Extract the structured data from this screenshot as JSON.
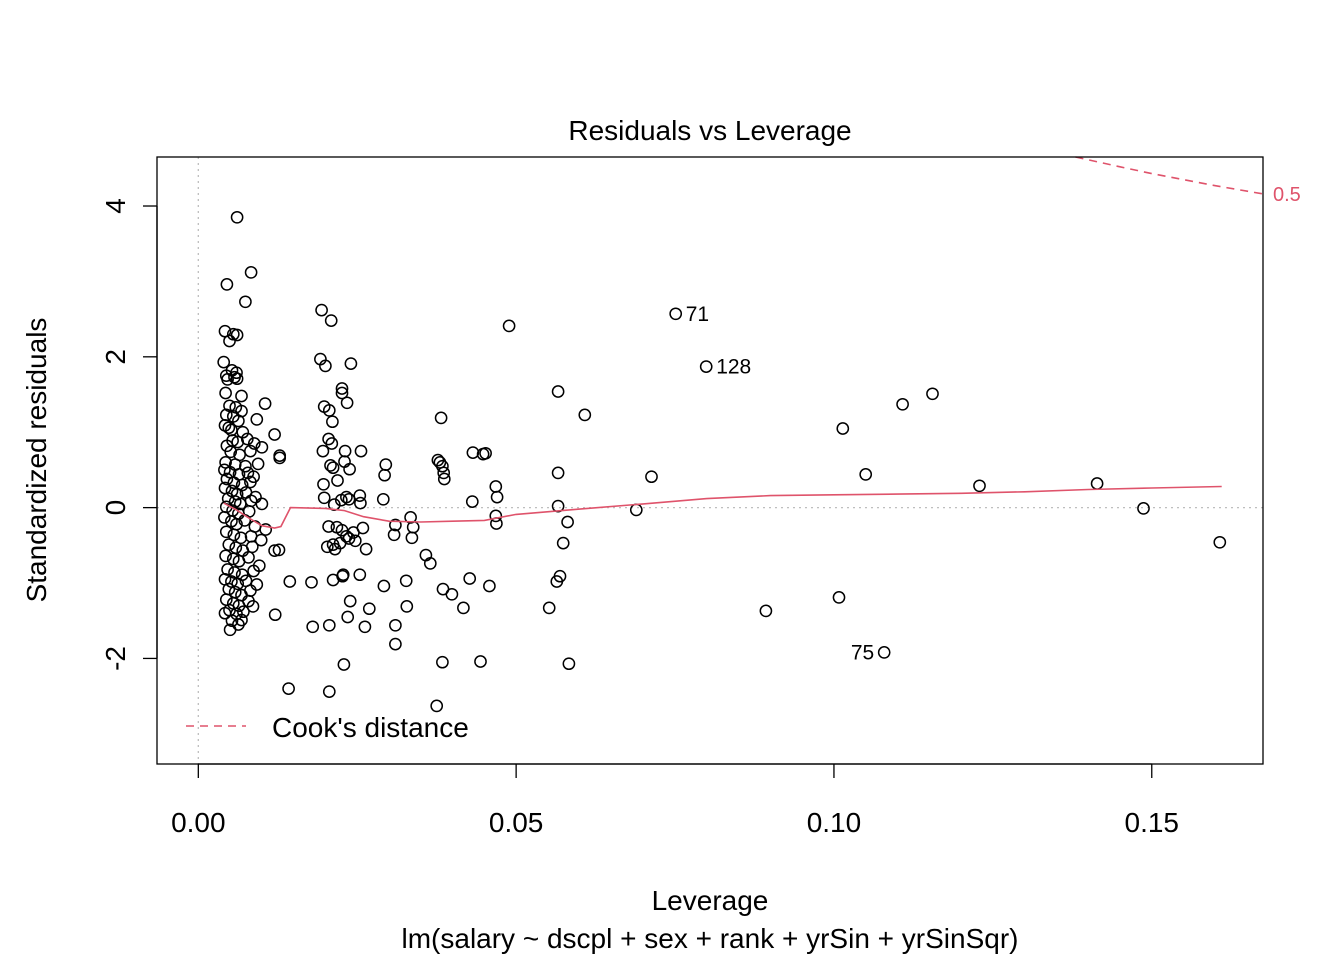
{
  "chart_data": {
    "type": "scatter",
    "title": "Residuals vs Leverage",
    "xlabel": "Leverage",
    "sublabel": "lm(salary ~ dscpl + sex + rank + yrSin + yrSinSqr)",
    "ylabel": "Standardized residuals",
    "xlim": [
      -0.0065,
      0.1675
    ],
    "ylim": [
      -3.4,
      4.65
    ],
    "x_ticks": [
      0.0,
      0.05,
      0.1,
      0.15
    ],
    "x_tick_labels": [
      "0.00",
      "0.05",
      "0.10",
      "0.15"
    ],
    "y_ticks": [
      -2,
      0,
      2,
      4
    ],
    "y_tick_labels": [
      "-2",
      "0",
      "2",
      "4"
    ],
    "reference_lines": {
      "x": 0,
      "y": 0,
      "style": "dotted",
      "color": "#BEBEBE"
    },
    "point_color": "#000000",
    "smooth_color": "#DF536B",
    "cook_color": "#DF536B",
    "points": [
      [
        0.0061,
        3.85
      ],
      [
        0.0083,
        3.12
      ],
      [
        0.0045,
        2.96
      ],
      [
        0.0074,
        2.73
      ],
      [
        0.0042,
        2.34
      ],
      [
        0.0055,
        2.3
      ],
      [
        0.0061,
        2.29
      ],
      [
        0.0049,
        2.21
      ],
      [
        0.004,
        1.93
      ],
      [
        0.0053,
        1.82
      ],
      [
        0.006,
        1.79
      ],
      [
        0.0044,
        1.75
      ],
      [
        0.0046,
        1.7
      ],
      [
        0.0057,
        1.73
      ],
      [
        0.0061,
        1.71
      ],
      [
        0.0043,
        1.52
      ],
      [
        0.0068,
        1.48
      ],
      [
        0.0105,
        1.38
      ],
      [
        0.0049,
        1.35
      ],
      [
        0.0059,
        1.33
      ],
      [
        0.0068,
        1.28
      ],
      [
        0.0044,
        1.23
      ],
      [
        0.0055,
        1.21
      ],
      [
        0.0063,
        1.15
      ],
      [
        0.0092,
        1.17
      ],
      [
        0.0042,
        1.09
      ],
      [
        0.0048,
        1.06
      ],
      [
        0.0052,
        1.03
      ],
      [
        0.007,
        1.0
      ],
      [
        0.012,
        0.97
      ],
      [
        0.0054,
        0.89
      ],
      [
        0.0062,
        0.87
      ],
      [
        0.0077,
        0.91
      ],
      [
        0.0088,
        0.85
      ],
      [
        0.01,
        0.8
      ],
      [
        0.0045,
        0.82
      ],
      [
        0.0051,
        0.74
      ],
      [
        0.0065,
        0.7
      ],
      [
        0.0082,
        0.75
      ],
      [
        0.0128,
        0.69
      ],
      [
        0.0128,
        0.66
      ],
      [
        0.0043,
        0.6
      ],
      [
        0.0058,
        0.57
      ],
      [
        0.0074,
        0.55
      ],
      [
        0.0094,
        0.58
      ],
      [
        0.0041,
        0.5
      ],
      [
        0.005,
        0.47
      ],
      [
        0.0064,
        0.44
      ],
      [
        0.0078,
        0.46
      ],
      [
        0.0087,
        0.41
      ],
      [
        0.0045,
        0.38
      ],
      [
        0.0056,
        0.33
      ],
      [
        0.0069,
        0.3
      ],
      [
        0.0082,
        0.34
      ],
      [
        0.0042,
        0.26
      ],
      [
        0.0053,
        0.22
      ],
      [
        0.0061,
        0.18
      ],
      [
        0.0075,
        0.2
      ],
      [
        0.009,
        0.14
      ],
      [
        0.0047,
        0.12
      ],
      [
        0.0058,
        0.08
      ],
      [
        0.0066,
        0.05
      ],
      [
        0.0083,
        0.09
      ],
      [
        0.01,
        0.05
      ],
      [
        0.0044,
        0.01
      ],
      [
        0.0054,
        -0.04
      ],
      [
        0.0063,
        -0.08
      ],
      [
        0.008,
        -0.05
      ],
      [
        0.0041,
        -0.13
      ],
      [
        0.0052,
        -0.18
      ],
      [
        0.006,
        -0.22
      ],
      [
        0.0073,
        -0.17
      ],
      [
        0.0089,
        -0.25
      ],
      [
        0.0106,
        -0.29
      ],
      [
        0.0044,
        -0.32
      ],
      [
        0.0056,
        -0.36
      ],
      [
        0.0067,
        -0.4
      ],
      [
        0.0083,
        -0.38
      ],
      [
        0.0099,
        -0.43
      ],
      [
        0.0048,
        -0.49
      ],
      [
        0.0059,
        -0.53
      ],
      [
        0.007,
        -0.57
      ],
      [
        0.0085,
        -0.52
      ],
      [
        0.0127,
        -0.56
      ],
      [
        0.012,
        -0.57
      ],
      [
        0.0043,
        -0.64
      ],
      [
        0.0055,
        -0.68
      ],
      [
        0.0064,
        -0.71
      ],
      [
        0.0079,
        -0.66
      ],
      [
        0.0096,
        -0.77
      ],
      [
        0.0046,
        -0.82
      ],
      [
        0.0057,
        -0.86
      ],
      [
        0.0069,
        -0.89
      ],
      [
        0.0087,
        -0.84
      ],
      [
        0.0042,
        -0.95
      ],
      [
        0.0052,
        -0.98
      ],
      [
        0.0062,
        -1.01
      ],
      [
        0.0075,
        -0.97
      ],
      [
        0.0092,
        -1.02
      ],
      [
        0.0048,
        -1.08
      ],
      [
        0.0058,
        -1.12
      ],
      [
        0.0068,
        -1.16
      ],
      [
        0.0082,
        -1.1
      ],
      [
        0.0044,
        -1.22
      ],
      [
        0.0055,
        -1.27
      ],
      [
        0.0064,
        -1.3
      ],
      [
        0.0079,
        -1.24
      ],
      [
        0.0049,
        -1.36
      ],
      [
        0.006,
        -1.41
      ],
      [
        0.0071,
        -1.38
      ],
      [
        0.0086,
        -1.31
      ],
      [
        0.0042,
        -1.4
      ],
      [
        0.0053,
        -1.5
      ],
      [
        0.0063,
        -1.55
      ],
      [
        0.0068,
        -1.49
      ],
      [
        0.005,
        -1.62
      ],
      [
        0.0121,
        -1.42
      ],
      [
        0.0144,
        -0.98
      ],
      [
        0.0194,
        2.62
      ],
      [
        0.0209,
        2.48
      ],
      [
        0.0192,
        1.97
      ],
      [
        0.02,
        1.88
      ],
      [
        0.024,
        1.91
      ],
      [
        0.0226,
        1.58
      ],
      [
        0.0226,
        1.52
      ],
      [
        0.0234,
        1.39
      ],
      [
        0.0198,
        1.34
      ],
      [
        0.0206,
        1.29
      ],
      [
        0.0211,
        1.14
      ],
      [
        0.0205,
        0.91
      ],
      [
        0.021,
        0.85
      ],
      [
        0.0196,
        0.75
      ],
      [
        0.0231,
        0.75
      ],
      [
        0.0256,
        0.75
      ],
      [
        0.0208,
        0.56
      ],
      [
        0.023,
        0.61
      ],
      [
        0.0238,
        0.51
      ],
      [
        0.0212,
        0.53
      ],
      [
        0.0197,
        0.31
      ],
      [
        0.0219,
        0.36
      ],
      [
        0.0254,
        0.16
      ],
      [
        0.0233,
        0.14
      ],
      [
        0.0225,
        0.1
      ],
      [
        0.0237,
        0.11
      ],
      [
        0.0255,
        0.06
      ],
      [
        0.0198,
        0.13
      ],
      [
        0.0214,
        0.04
      ],
      [
        0.0205,
        -0.25
      ],
      [
        0.0218,
        -0.26
      ],
      [
        0.0226,
        -0.3
      ],
      [
        0.0244,
        -0.33
      ],
      [
        0.0259,
        -0.27
      ],
      [
        0.0233,
        -0.38
      ],
      [
        0.0237,
        -0.41
      ],
      [
        0.0247,
        -0.44
      ],
      [
        0.0223,
        -0.47
      ],
      [
        0.0212,
        -0.49
      ],
      [
        0.0203,
        -0.52
      ],
      [
        0.0215,
        -0.55
      ],
      [
        0.0264,
        -0.55
      ],
      [
        0.0228,
        -0.89
      ],
      [
        0.0254,
        -0.89
      ],
      [
        0.0227,
        -0.91
      ],
      [
        0.0212,
        -0.96
      ],
      [
        0.0178,
        -0.99
      ],
      [
        0.0239,
        -1.24
      ],
      [
        0.0269,
        -1.34
      ],
      [
        0.0235,
        -1.45
      ],
      [
        0.0206,
        -1.56
      ],
      [
        0.018,
        -1.58
      ],
      [
        0.0262,
        -1.58
      ],
      [
        0.0229,
        -2.08
      ],
      [
        0.0142,
        -2.4
      ],
      [
        0.0206,
        -2.44
      ],
      [
        0.0295,
        0.57
      ],
      [
        0.0293,
        0.43
      ],
      [
        0.0291,
        0.11
      ],
      [
        0.031,
        -0.23
      ],
      [
        0.0308,
        -0.36
      ],
      [
        0.0334,
        -0.13
      ],
      [
        0.0338,
        -0.26
      ],
      [
        0.0336,
        -0.4
      ],
      [
        0.0358,
        -0.63
      ],
      [
        0.0365,
        -0.74
      ],
      [
        0.0292,
        -1.04
      ],
      [
        0.0327,
        -0.97
      ],
      [
        0.0328,
        -1.31
      ],
      [
        0.031,
        -1.56
      ],
      [
        0.031,
        -1.81
      ],
      [
        0.0377,
        0.63
      ],
      [
        0.038,
        0.6
      ],
      [
        0.0384,
        0.55
      ],
      [
        0.0386,
        0.46
      ],
      [
        0.0387,
        0.38
      ],
      [
        0.0382,
        1.19
      ],
      [
        0.0432,
        0.73
      ],
      [
        0.0448,
        0.71
      ],
      [
        0.0452,
        0.72
      ],
      [
        0.0431,
        0.08
      ],
      [
        0.0468,
        0.28
      ],
      [
        0.047,
        0.14
      ],
      [
        0.0468,
        -0.11
      ],
      [
        0.0469,
        -0.21
      ],
      [
        0.0385,
        -1.08
      ],
      [
        0.0399,
        -1.15
      ],
      [
        0.0417,
        -1.33
      ],
      [
        0.0427,
        -0.94
      ],
      [
        0.0458,
        -1.04
      ],
      [
        0.0384,
        -2.05
      ],
      [
        0.0444,
        -2.04
      ],
      [
        0.0375,
        -2.63
      ],
      [
        0.0489,
        2.41
      ],
      [
        0.0566,
        1.54
      ],
      [
        0.0608,
        1.23
      ],
      [
        0.0566,
        0.46
      ],
      [
        0.0566,
        0.02
      ],
      [
        0.0581,
        -0.19
      ],
      [
        0.0574,
        -0.47
      ],
      [
        0.0569,
        -0.91
      ],
      [
        0.0564,
        -0.98
      ],
      [
        0.0552,
        -1.33
      ],
      [
        0.0583,
        -2.07
      ],
      [
        0.0689,
        -0.03
      ],
      [
        0.0713,
        0.41
      ],
      [
        0.0751,
        2.57
      ],
      [
        0.0799,
        1.87
      ],
      [
        0.0893,
        -1.37
      ],
      [
        0.1008,
        -1.19
      ],
      [
        0.1014,
        1.05
      ],
      [
        0.105,
        0.44
      ],
      [
        0.1079,
        -1.92
      ],
      [
        0.1108,
        1.37
      ],
      [
        0.1155,
        1.51
      ],
      [
        0.1229,
        0.29
      ],
      [
        0.1414,
        0.32
      ],
      [
        0.1487,
        -0.01
      ],
      [
        0.1607,
        -0.46
      ]
    ],
    "point_labels": [
      {
        "text": "71",
        "x": 0.0751,
        "y": 2.57,
        "side": "right"
      },
      {
        "text": "128",
        "x": 0.0799,
        "y": 1.87,
        "side": "right"
      },
      {
        "text": "75",
        "x": 0.1079,
        "y": -1.92,
        "side": "left"
      }
    ],
    "smooth_line": [
      [
        0.004,
        0.06
      ],
      [
        0.006,
        -0.03
      ],
      [
        0.008,
        -0.14
      ],
      [
        0.01,
        -0.24
      ],
      [
        0.012,
        -0.27
      ],
      [
        0.013,
        -0.25
      ],
      [
        0.0145,
        0.0
      ],
      [
        0.02,
        -0.01
      ],
      [
        0.023,
        -0.04
      ],
      [
        0.026,
        -0.12
      ],
      [
        0.03,
        -0.18
      ],
      [
        0.035,
        -0.19
      ],
      [
        0.04,
        -0.18
      ],
      [
        0.045,
        -0.17
      ],
      [
        0.05,
        -0.09
      ],
      [
        0.06,
        -0.02
      ],
      [
        0.07,
        0.05
      ],
      [
        0.08,
        0.12
      ],
      [
        0.09,
        0.16
      ],
      [
        0.1,
        0.17
      ],
      [
        0.11,
        0.18
      ],
      [
        0.12,
        0.19
      ],
      [
        0.13,
        0.21
      ],
      [
        0.14,
        0.24
      ],
      [
        0.15,
        0.26
      ],
      [
        0.161,
        0.28
      ]
    ],
    "cooks_curve": {
      "label": "0.5",
      "points": [
        [
          0.138,
          4.65
        ],
        [
          0.145,
          4.52
        ],
        [
          0.15,
          4.43
        ],
        [
          0.155,
          4.35
        ],
        [
          0.16,
          4.27
        ],
        [
          0.1675,
          4.16
        ]
      ]
    },
    "legend": {
      "position": "bottom-left",
      "entries": [
        {
          "label": "Cook's distance",
          "color": "#DF536B",
          "style": "dashed"
        }
      ]
    }
  }
}
